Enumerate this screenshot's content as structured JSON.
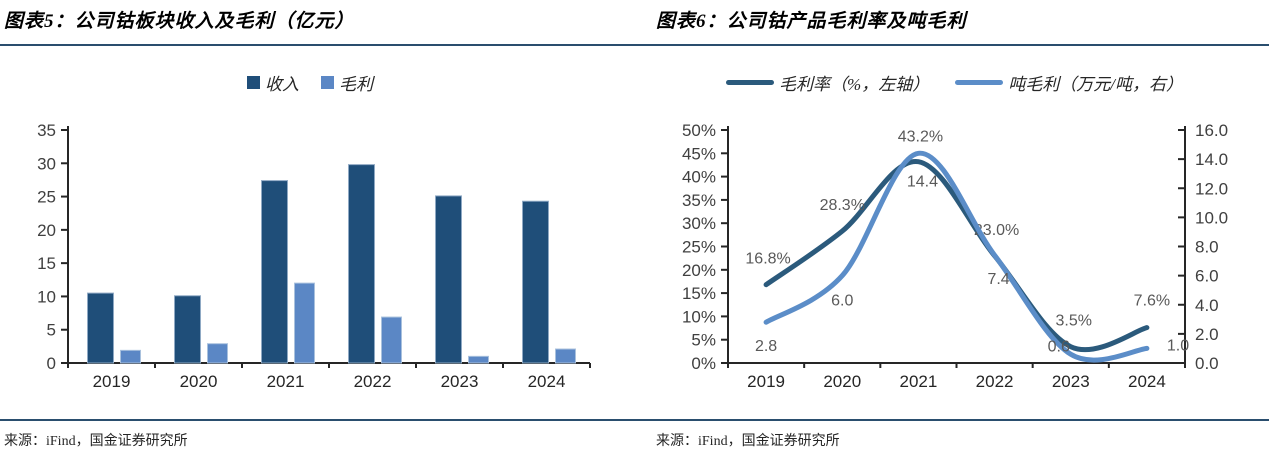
{
  "figure5": {
    "title": "图表5：公司钴板块收入及毛利（亿元）",
    "source": "来源：iFind，国金证券研究所",
    "chart_data": {
      "type": "bar",
      "categories": [
        "2019",
        "2020",
        "2021",
        "2022",
        "2023",
        "2024"
      ],
      "series": [
        {
          "name": "收入",
          "color": "#1F4E79",
          "edge": "#8FA9C4",
          "values": [
            10.5,
            10.1,
            27.4,
            29.8,
            25.1,
            24.3
          ]
        },
        {
          "name": "毛利",
          "color": "#5B87C5",
          "edge": "#A9C1DD",
          "values": [
            1.9,
            2.9,
            12.0,
            6.9,
            1.0,
            2.1
          ]
        }
      ],
      "ylim": [
        0,
        35
      ],
      "ytick_step": 5,
      "grid": false,
      "legend_position": "top"
    }
  },
  "figure6": {
    "title": "图表6：公司钴产品毛利率及吨毛利",
    "source": "来源：iFind，国金证券研究所",
    "chart_data": {
      "type": "line",
      "categories": [
        "2019",
        "2020",
        "2021",
        "2022",
        "2023",
        "2024"
      ],
      "series": [
        {
          "name": "毛利率（%，左轴）",
          "axis": "left",
          "color": "#2B5A7C",
          "values": [
            16.8,
            28.3,
            43.2,
            23.0,
            3.5,
            7.6
          ],
          "labels": [
            "16.8%",
            "28.3%",
            "43.2%",
            "23.0%",
            "3.5%",
            "7.6%"
          ]
        },
        {
          "name": "吨毛利（万元/吨，右）",
          "axis": "right",
          "color": "#5B8DC8",
          "values": [
            2.8,
            6.0,
            14.4,
            7.4,
            0.6,
            1.0
          ],
          "labels": [
            "2.8",
            "6.0",
            "14.4",
            "7.4",
            "0.6",
            "1.0"
          ]
        }
      ],
      "left_ylim": [
        0,
        50
      ],
      "left_tick_step": 5,
      "left_tick_format": "percent",
      "right_ylim": [
        0,
        16
      ],
      "right_tick_step": 2,
      "right_tick_format": "decimal1",
      "grid": false,
      "legend_position": "top"
    }
  },
  "colors": {
    "rule": "#2A4E6E",
    "axis": "#262626",
    "tick_label": "#404040",
    "data_label": "#595959"
  }
}
